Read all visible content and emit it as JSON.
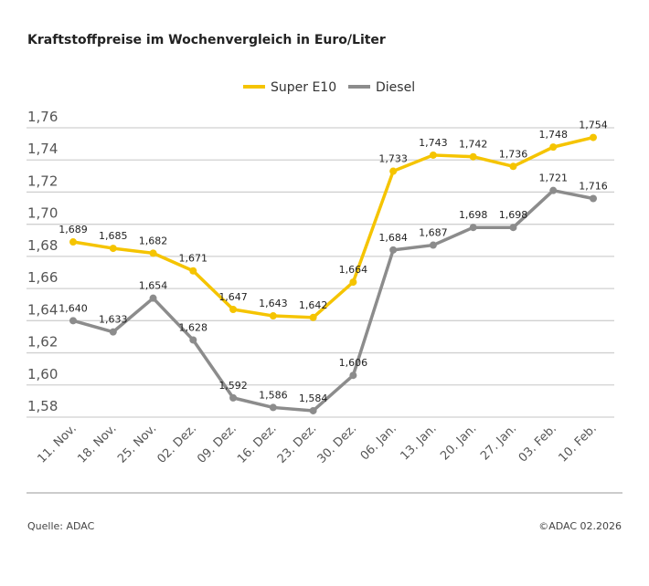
{
  "chart_data": {
    "type": "line",
    "title": "Kraftstoffpreise im Wochenvergleich in Euro/Liter",
    "categories": [
      "11. Nov.",
      "18. Nov.",
      "25. Nov.",
      "02. Dez.",
      "09. Dez.",
      "16. Dez.",
      "23. Dez.",
      "30. Dez.",
      "06. Jan.",
      "13. Jan.",
      "20. Jan.",
      "27. Jan.",
      "03. Feb.",
      "10. Feb."
    ],
    "series": [
      {
        "name": "Super E10",
        "color": "#f5c400",
        "values": [
          1.689,
          1.685,
          1.682,
          1.671,
          1.647,
          1.643,
          1.642,
          1.664,
          1.733,
          1.743,
          1.742,
          1.736,
          1.748,
          1.754
        ]
      },
      {
        "name": "Diesel",
        "color": "#8c8c8c",
        "values": [
          1.64,
          1.633,
          1.654,
          1.628,
          1.592,
          1.586,
          1.584,
          1.606,
          1.684,
          1.687,
          1.698,
          1.698,
          1.721,
          1.716
        ]
      }
    ],
    "yticks": [
      "1,58",
      "1,60",
      "1,62",
      "1,64",
      "1,66",
      "1,68",
      "1,70",
      "1,72",
      "1,74",
      "1,76"
    ],
    "ylim": [
      1.58,
      1.76
    ],
    "grid": true,
    "legend": "top-center",
    "xlabel": "",
    "ylabel": ""
  },
  "footer": {
    "source": "Quelle: ADAC",
    "copyright": "©ADAC 02.2026"
  }
}
